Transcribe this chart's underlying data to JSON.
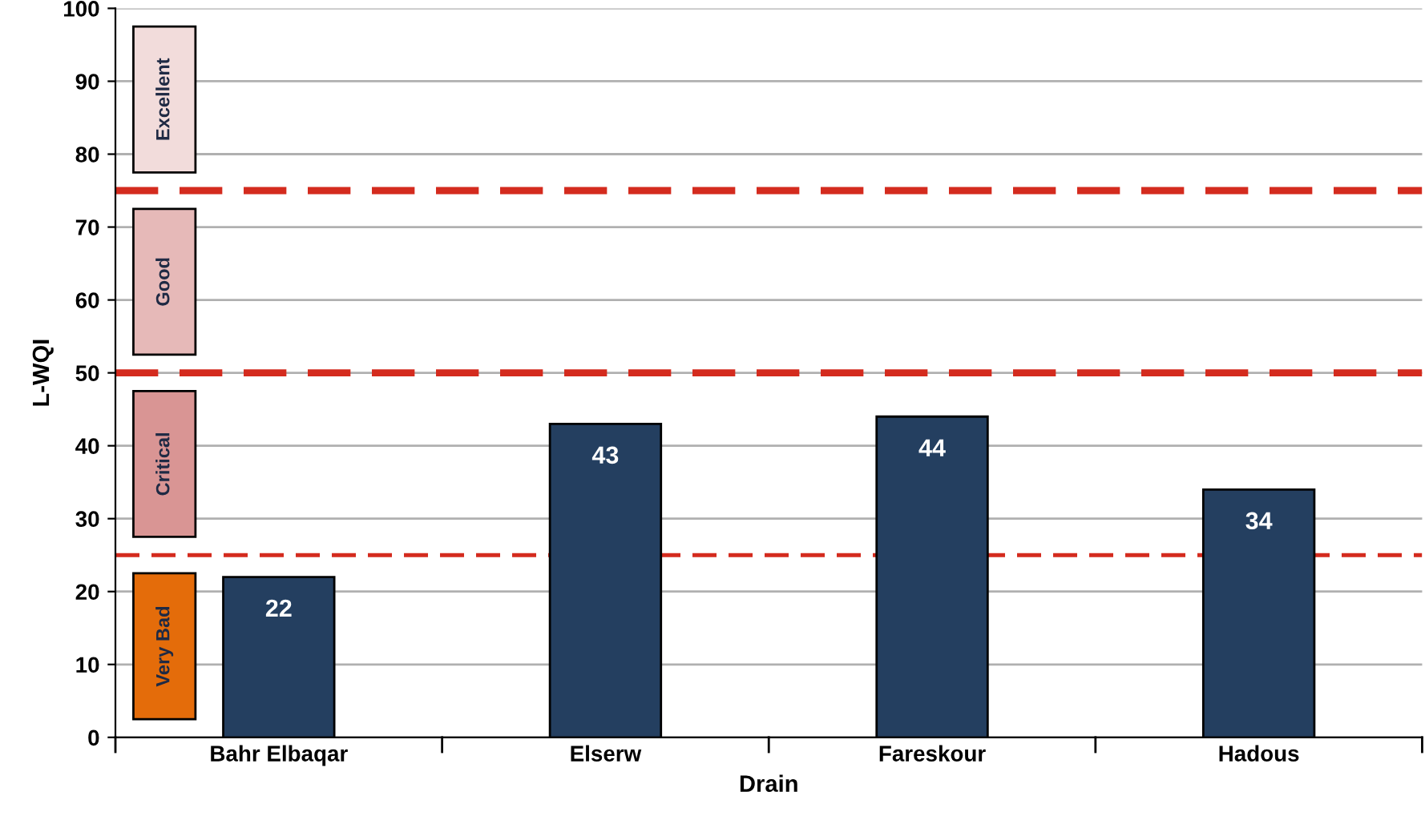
{
  "chart_data": {
    "type": "bar",
    "xlabel": "Drain",
    "ylabel": "L-WQI",
    "categories": [
      "Bahr Elbaqar",
      "Elserw",
      "Fareskour",
      "Hadous"
    ],
    "values": [
      22,
      43,
      44,
      34
    ],
    "color": "#243f60",
    "data_labels": true,
    "ylim": [
      0,
      100
    ],
    "yticks": [
      0,
      10,
      20,
      30,
      40,
      50,
      60,
      70,
      80,
      90,
      100
    ],
    "grid": "y",
    "ref_lines": [
      {
        "axis": "y",
        "value": 25,
        "color": "#d42b1e",
        "line_style": "dashed"
      },
      {
        "axis": "y",
        "value": 50,
        "color": "#d42b1e",
        "line_style": "dashed"
      },
      {
        "axis": "y",
        "value": 75,
        "color": "#d42b1e",
        "line_style": "dashed"
      }
    ],
    "annotations": [
      "Very Bad",
      "Critical",
      "Good",
      "Excellent"
    ]
  }
}
